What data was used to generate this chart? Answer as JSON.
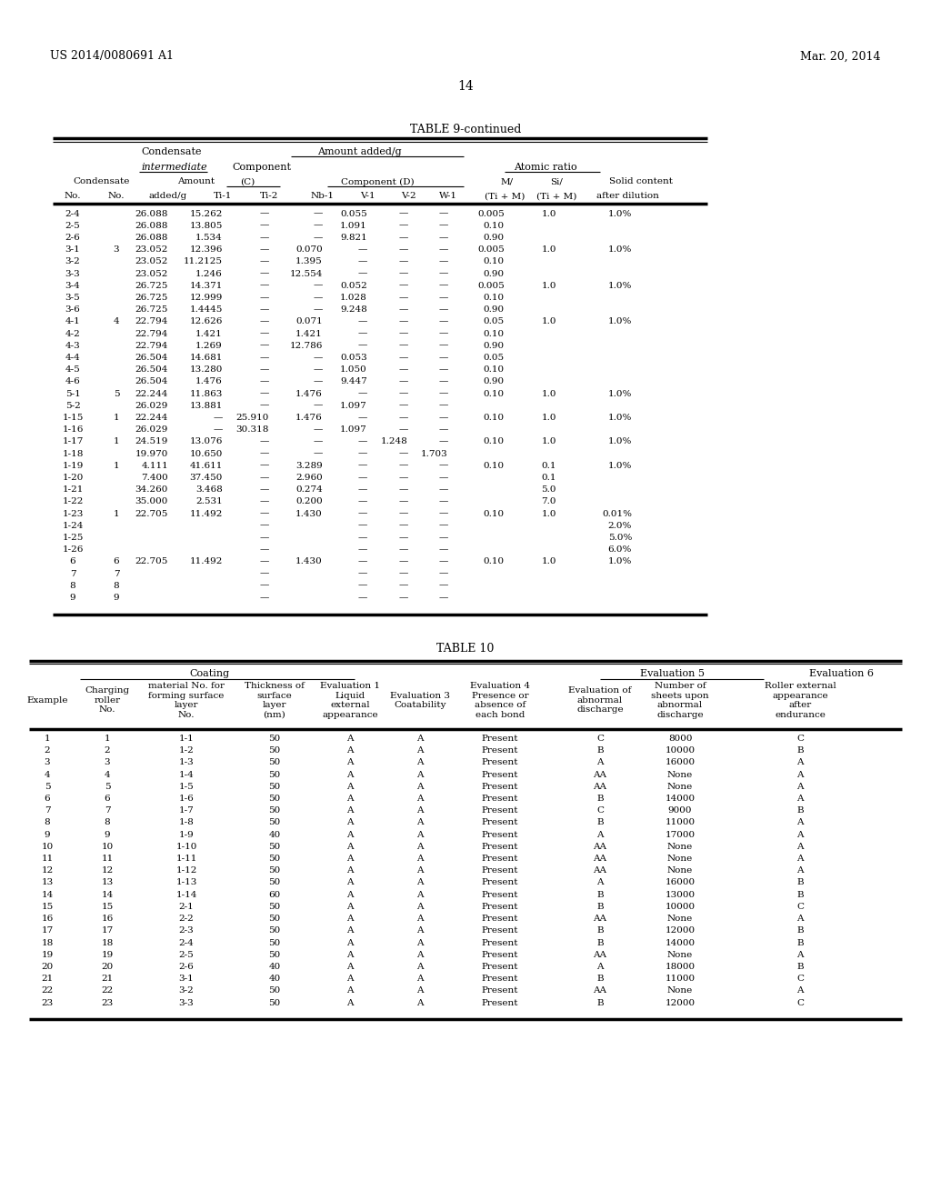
{
  "page_number": "14",
  "patent_left": "US 2014/0080691 A1",
  "patent_right": "Mar. 20, 2014",
  "background_color": "#ffffff",
  "table9_title": "TABLE 9-continued",
  "table9_rows": [
    [
      "2-4",
      "",
      "26.088",
      "15.262",
      "—",
      "—",
      "0.055",
      "—",
      "—",
      "0.005",
      "1.0",
      "1.0%"
    ],
    [
      "2-5",
      "",
      "26.088",
      "13.805",
      "—",
      "—",
      "1.091",
      "—",
      "—",
      "0.10",
      "",
      ""
    ],
    [
      "2-6",
      "",
      "26.088",
      "1.534",
      "—",
      "—",
      "9.821",
      "—",
      "—",
      "0.90",
      "",
      ""
    ],
    [
      "3-1",
      "3",
      "23.052",
      "12.396",
      "—",
      "0.070",
      "—",
      "—",
      "—",
      "0.005",
      "1.0",
      "1.0%"
    ],
    [
      "3-2",
      "",
      "23.052",
      "11.2125",
      "—",
      "1.395",
      "—",
      "—",
      "—",
      "0.10",
      "",
      ""
    ],
    [
      "3-3",
      "",
      "23.052",
      "1.246",
      "—",
      "12.554",
      "—",
      "—",
      "—",
      "0.90",
      "",
      ""
    ],
    [
      "3-4",
      "",
      "26.725",
      "14.371",
      "—",
      "—",
      "0.052",
      "—",
      "—",
      "0.005",
      "1.0",
      "1.0%"
    ],
    [
      "3-5",
      "",
      "26.725",
      "12.999",
      "—",
      "—",
      "1.028",
      "—",
      "—",
      "0.10",
      "",
      ""
    ],
    [
      "3-6",
      "",
      "26.725",
      "1.4445",
      "—",
      "—",
      "9.248",
      "—",
      "—",
      "0.90",
      "",
      ""
    ],
    [
      "4-1",
      "4",
      "22.794",
      "12.626",
      "—",
      "0.071",
      "—",
      "—",
      "—",
      "0.05",
      "1.0",
      "1.0%"
    ],
    [
      "4-2",
      "",
      "22.794",
      "1.421",
      "—",
      "1.421",
      "—",
      "—",
      "—",
      "0.10",
      "",
      ""
    ],
    [
      "4-3",
      "",
      "22.794",
      "1.269",
      "—",
      "12.786",
      "—",
      "—",
      "—",
      "0.90",
      "",
      ""
    ],
    [
      "4-4",
      "",
      "26.504",
      "14.681",
      "—",
      "—",
      "0.053",
      "—",
      "—",
      "0.05",
      "",
      ""
    ],
    [
      "4-5",
      "",
      "26.504",
      "13.280",
      "—",
      "—",
      "1.050",
      "—",
      "—",
      "0.10",
      "",
      ""
    ],
    [
      "4-6",
      "",
      "26.504",
      "1.476",
      "—",
      "—",
      "9.447",
      "—",
      "—",
      "0.90",
      "",
      ""
    ],
    [
      "5-1",
      "5",
      "22.244",
      "11.863",
      "—",
      "1.476",
      "—",
      "—",
      "—",
      "0.10",
      "1.0",
      "1.0%"
    ],
    [
      "5-2",
      "",
      "26.029",
      "13.881",
      "—",
      "—",
      "1.097",
      "—",
      "—",
      "",
      "",
      ""
    ],
    [
      "1-15",
      "1",
      "22.244",
      "—",
      "25.910",
      "1.476",
      "—",
      "—",
      "—",
      "0.10",
      "1.0",
      "1.0%"
    ],
    [
      "1-16",
      "",
      "26.029",
      "—",
      "30.318",
      "—",
      "1.097",
      "—",
      "—",
      "",
      "",
      ""
    ],
    [
      "1-17",
      "1",
      "24.519",
      "13.076",
      "—",
      "—",
      "—",
      "1.248",
      "—",
      "0.10",
      "1.0",
      "1.0%"
    ],
    [
      "1-18",
      "",
      "19.970",
      "10.650",
      "—",
      "—",
      "—",
      "—",
      "1.703",
      "",
      "",
      ""
    ],
    [
      "1-19",
      "1",
      "4.111",
      "41.611",
      "—",
      "3.289",
      "—",
      "—",
      "—",
      "0.10",
      "0.1",
      "1.0%"
    ],
    [
      "1-20",
      "",
      "7.400",
      "37.450",
      "—",
      "2.960",
      "—",
      "—",
      "—",
      "",
      "0.1",
      ""
    ],
    [
      "1-21",
      "",
      "34.260",
      "3.468",
      "—",
      "0.274",
      "—",
      "—",
      "—",
      "",
      "5.0",
      ""
    ],
    [
      "1-22",
      "",
      "35.000",
      "2.531",
      "—",
      "0.200",
      "—",
      "—",
      "—",
      "",
      "7.0",
      ""
    ],
    [
      "1-23",
      "1",
      "22.705",
      "11.492",
      "—",
      "1.430",
      "—",
      "—",
      "—",
      "0.10",
      "1.0",
      "0.01%"
    ],
    [
      "1-24",
      "",
      "",
      "",
      "—",
      "",
      "—",
      "—",
      "—",
      "",
      "",
      "2.0%"
    ],
    [
      "1-25",
      "",
      "",
      "",
      "—",
      "",
      "—",
      "—",
      "—",
      "",
      "",
      "5.0%"
    ],
    [
      "1-26",
      "",
      "",
      "",
      "—",
      "",
      "—",
      "—",
      "—",
      "",
      "",
      "6.0%"
    ],
    [
      "6",
      "6",
      "22.705",
      "11.492",
      "—",
      "1.430",
      "—",
      "—",
      "—",
      "0.10",
      "1.0",
      "1.0%"
    ],
    [
      "7",
      "7",
      "",
      "",
      "—",
      "",
      "—",
      "—",
      "—",
      "",
      "",
      ""
    ],
    [
      "8",
      "8",
      "",
      "",
      "—",
      "",
      "—",
      "—",
      "—",
      "",
      "",
      ""
    ],
    [
      "9",
      "9",
      "",
      "",
      "—",
      "",
      "—",
      "—",
      "—",
      "",
      "",
      ""
    ]
  ],
  "table10_title": "TABLE 10",
  "table10_rows": [
    [
      "1",
      "1",
      "1-1",
      "50",
      "A",
      "A",
      "Present",
      "C",
      "8000",
      "C"
    ],
    [
      "2",
      "2",
      "1-2",
      "50",
      "A",
      "A",
      "Present",
      "B",
      "10000",
      "B"
    ],
    [
      "3",
      "3",
      "1-3",
      "50",
      "A",
      "A",
      "Present",
      "A",
      "16000",
      "A"
    ],
    [
      "4",
      "4",
      "1-4",
      "50",
      "A",
      "A",
      "Present",
      "AA",
      "None",
      "A"
    ],
    [
      "5",
      "5",
      "1-5",
      "50",
      "A",
      "A",
      "Present",
      "AA",
      "None",
      "A"
    ],
    [
      "6",
      "6",
      "1-6",
      "50",
      "A",
      "A",
      "Present",
      "B",
      "14000",
      "A"
    ],
    [
      "7",
      "7",
      "1-7",
      "50",
      "A",
      "A",
      "Present",
      "C",
      "9000",
      "B"
    ],
    [
      "8",
      "8",
      "1-8",
      "50",
      "A",
      "A",
      "Present",
      "B",
      "11000",
      "A"
    ],
    [
      "9",
      "9",
      "1-9",
      "40",
      "A",
      "A",
      "Present",
      "A",
      "17000",
      "A"
    ],
    [
      "10",
      "10",
      "1-10",
      "50",
      "A",
      "A",
      "Present",
      "AA",
      "None",
      "A"
    ],
    [
      "11",
      "11",
      "1-11",
      "50",
      "A",
      "A",
      "Present",
      "AA",
      "None",
      "A"
    ],
    [
      "12",
      "12",
      "1-12",
      "50",
      "A",
      "A",
      "Present",
      "AA",
      "None",
      "A"
    ],
    [
      "13",
      "13",
      "1-13",
      "50",
      "A",
      "A",
      "Present",
      "A",
      "16000",
      "B"
    ],
    [
      "14",
      "14",
      "1-14",
      "60",
      "A",
      "A",
      "Present",
      "B",
      "13000",
      "B"
    ],
    [
      "15",
      "15",
      "2-1",
      "50",
      "A",
      "A",
      "Present",
      "B",
      "10000",
      "C"
    ],
    [
      "16",
      "16",
      "2-2",
      "50",
      "A",
      "A",
      "Present",
      "AA",
      "None",
      "A"
    ],
    [
      "17",
      "17",
      "2-3",
      "50",
      "A",
      "A",
      "Present",
      "B",
      "12000",
      "B"
    ],
    [
      "18",
      "18",
      "2-4",
      "50",
      "A",
      "A",
      "Present",
      "B",
      "14000",
      "B"
    ],
    [
      "19",
      "19",
      "2-5",
      "50",
      "A",
      "A",
      "Present",
      "AA",
      "None",
      "A"
    ],
    [
      "20",
      "20",
      "2-6",
      "40",
      "A",
      "A",
      "Present",
      "A",
      "18000",
      "B"
    ],
    [
      "21",
      "21",
      "3-1",
      "40",
      "A",
      "A",
      "Present",
      "B",
      "11000",
      "C"
    ],
    [
      "22",
      "22",
      "3-2",
      "50",
      "A",
      "A",
      "Present",
      "AA",
      "None",
      "A"
    ],
    [
      "23",
      "23",
      "3-3",
      "50",
      "A",
      "A",
      "Present",
      "B",
      "12000",
      "C"
    ]
  ]
}
